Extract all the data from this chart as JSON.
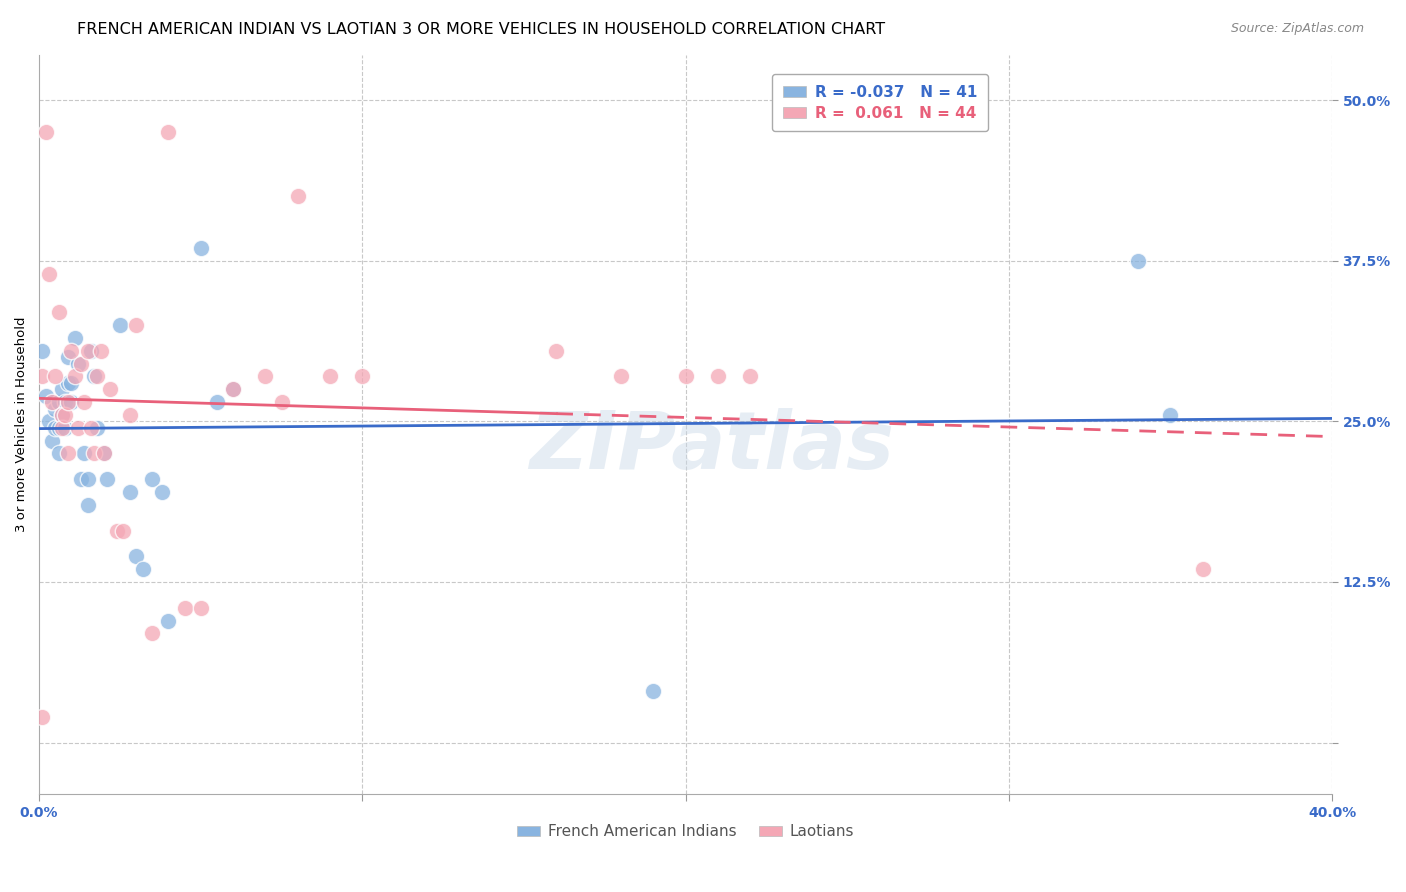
{
  "title": "FRENCH AMERICAN INDIAN VS LAOTIAN 3 OR MORE VEHICLES IN HOUSEHOLD CORRELATION CHART",
  "source": "Source: ZipAtlas.com",
  "ylabel": "3 or more Vehicles in Household",
  "yticks": [
    0.0,
    0.125,
    0.25,
    0.375,
    0.5
  ],
  "ytick_labels": [
    "",
    "12.5%",
    "25.0%",
    "37.5%",
    "50.0%"
  ],
  "xmin": 0.0,
  "xmax": 0.4,
  "ymin": -0.04,
  "ymax": 0.535,
  "blue_R": -0.037,
  "blue_N": 41,
  "pink_R": 0.061,
  "pink_N": 44,
  "blue_color": "#89b4e0",
  "pink_color": "#f4a7b5",
  "blue_line_color": "#3a6bc9",
  "pink_line_color": "#e8607a",
  "legend_label_blue": "French American Indians",
  "legend_label_pink": "Laotians",
  "blue_x": [
    0.001,
    0.002,
    0.003,
    0.004,
    0.005,
    0.005,
    0.006,
    0.006,
    0.006,
    0.007,
    0.007,
    0.008,
    0.008,
    0.009,
    0.009,
    0.01,
    0.01,
    0.011,
    0.012,
    0.013,
    0.014,
    0.015,
    0.015,
    0.016,
    0.017,
    0.018,
    0.02,
    0.021,
    0.025,
    0.028,
    0.03,
    0.032,
    0.035,
    0.038,
    0.04,
    0.05,
    0.055,
    0.06,
    0.19,
    0.34,
    0.35
  ],
  "blue_y": [
    0.305,
    0.27,
    0.25,
    0.235,
    0.26,
    0.245,
    0.265,
    0.245,
    0.225,
    0.255,
    0.275,
    0.265,
    0.245,
    0.28,
    0.3,
    0.265,
    0.28,
    0.315,
    0.295,
    0.205,
    0.225,
    0.185,
    0.205,
    0.305,
    0.285,
    0.245,
    0.225,
    0.205,
    0.325,
    0.195,
    0.145,
    0.135,
    0.205,
    0.195,
    0.095,
    0.385,
    0.265,
    0.275,
    0.04,
    0.375,
    0.255
  ],
  "pink_x": [
    0.001,
    0.001,
    0.002,
    0.003,
    0.004,
    0.005,
    0.006,
    0.007,
    0.007,
    0.008,
    0.009,
    0.009,
    0.01,
    0.011,
    0.012,
    0.013,
    0.014,
    0.015,
    0.016,
    0.017,
    0.018,
    0.019,
    0.02,
    0.022,
    0.024,
    0.026,
    0.028,
    0.03,
    0.035,
    0.04,
    0.045,
    0.05,
    0.06,
    0.07,
    0.075,
    0.08,
    0.09,
    0.1,
    0.16,
    0.18,
    0.2,
    0.21,
    0.22,
    0.36
  ],
  "pink_y": [
    0.02,
    0.285,
    0.475,
    0.365,
    0.265,
    0.285,
    0.335,
    0.255,
    0.245,
    0.255,
    0.225,
    0.265,
    0.305,
    0.285,
    0.245,
    0.295,
    0.265,
    0.305,
    0.245,
    0.225,
    0.285,
    0.305,
    0.225,
    0.275,
    0.165,
    0.165,
    0.255,
    0.325,
    0.085,
    0.475,
    0.105,
    0.105,
    0.275,
    0.285,
    0.265,
    0.425,
    0.285,
    0.285,
    0.305,
    0.285,
    0.285,
    0.285,
    0.285,
    0.135
  ],
  "watermark": "ZIPatlas",
  "background_color": "#FFFFFF",
  "grid_color": "#c8c8c8",
  "tick_label_color": "#3a6bc9",
  "title_fontsize": 11.5,
  "axis_label_fontsize": 9.5,
  "tick_fontsize": 10,
  "legend_fontsize": 11,
  "marker_size": 140,
  "pink_line_solid_end": 0.16
}
